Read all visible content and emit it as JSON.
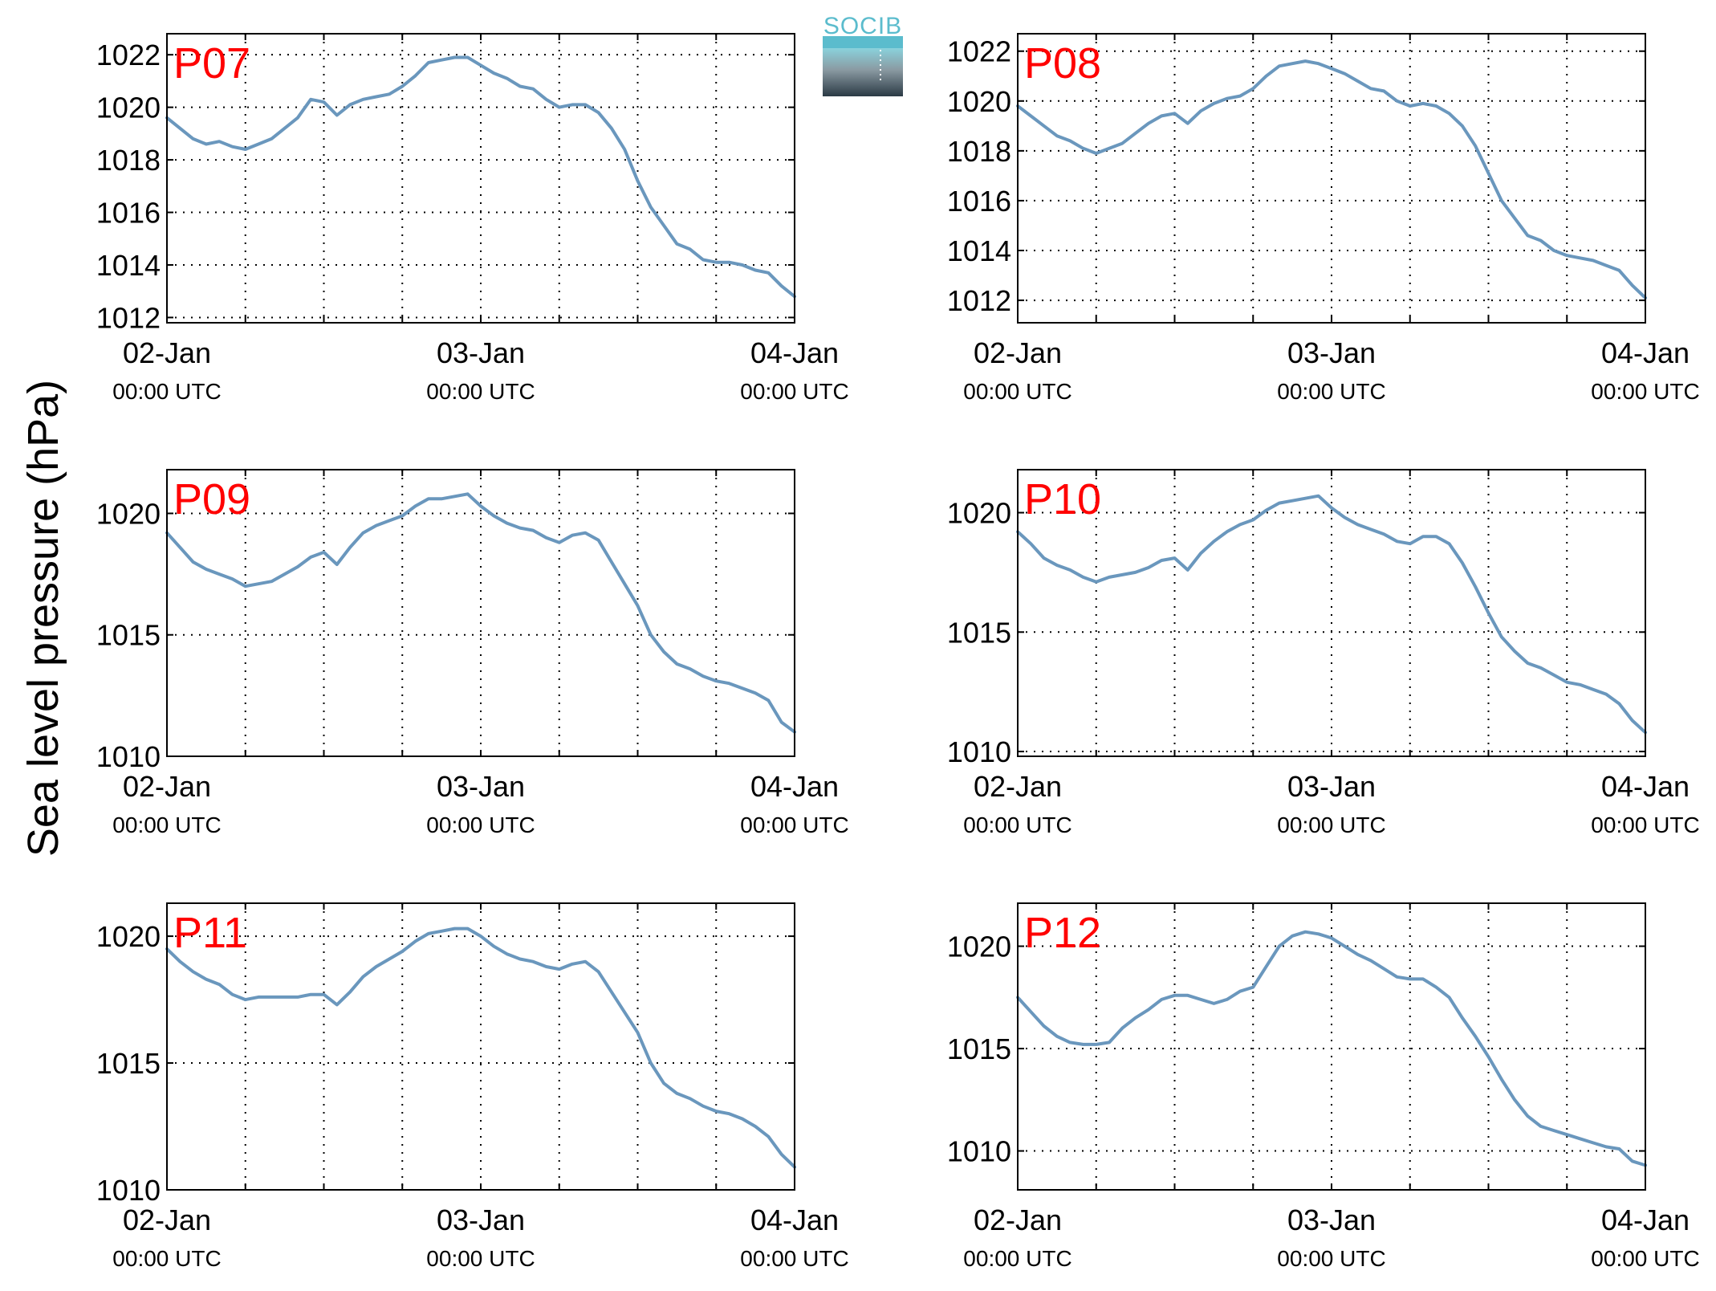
{
  "figure": {
    "ylabel": "Sea level pressure (hPa)",
    "logo_text": "SOCIB",
    "line_color": "#6a97bd",
    "station_label_color": "#ff0000",
    "logo_top_color": "#5bbccd",
    "logo_bottom_color": "#2b3a45"
  },
  "chart_data": [
    {
      "type": "line",
      "title": "P07",
      "x_ticks": [
        {
          "date": "02-Jan",
          "time": "00:00 UTC"
        },
        {
          "date": "03-Jan",
          "time": "00:00 UTC"
        },
        {
          "date": "04-Jan",
          "time": "00:00 UTC"
        }
      ],
      "xlim_hours": [
        0,
        48
      ],
      "ylim": [
        1011.8,
        1022.8
      ],
      "y_ticks": [
        1012,
        1014,
        1016,
        1018,
        1020,
        1022
      ],
      "grid": true,
      "series": [
        {
          "x_hours": [
            0,
            1,
            2,
            3,
            4,
            5,
            6,
            7,
            8,
            9,
            10,
            11,
            12,
            13,
            14,
            15,
            16,
            17,
            18,
            19,
            20,
            21,
            22,
            23,
            24,
            25,
            26,
            27,
            28,
            29,
            30,
            31,
            32,
            33,
            34,
            35,
            36,
            37,
            38,
            39,
            40,
            41,
            42,
            43,
            44,
            45,
            46,
            47,
            48
          ],
          "values": [
            1019.6,
            1019.2,
            1018.8,
            1018.6,
            1018.7,
            1018.5,
            1018.4,
            1018.6,
            1018.8,
            1019.2,
            1019.6,
            1020.3,
            1020.2,
            1019.7,
            1020.1,
            1020.3,
            1020.4,
            1020.5,
            1020.8,
            1021.2,
            1021.7,
            1021.8,
            1021.9,
            1021.9,
            1021.6,
            1021.3,
            1021.1,
            1020.8,
            1020.7,
            1020.3,
            1020.0,
            1020.1,
            1020.1,
            1019.8,
            1019.2,
            1018.4,
            1017.2,
            1016.2,
            1015.5,
            1014.8,
            1014.6,
            1014.2,
            1014.1,
            1014.1,
            1014.0,
            1013.8,
            1013.7,
            1013.2,
            1012.8
          ]
        }
      ]
    },
    {
      "type": "line",
      "title": "P08",
      "x_ticks": [
        {
          "date": "02-Jan",
          "time": "00:00 UTC"
        },
        {
          "date": "03-Jan",
          "time": "00:00 UTC"
        },
        {
          "date": "04-Jan",
          "time": "00:00 UTC"
        }
      ],
      "xlim_hours": [
        0,
        48
      ],
      "ylim": [
        1011.1,
        1022.7
      ],
      "y_ticks": [
        1012,
        1014,
        1016,
        1018,
        1020,
        1022
      ],
      "grid": true,
      "series": [
        {
          "x_hours": [
            0,
            1,
            2,
            3,
            4,
            5,
            6,
            7,
            8,
            9,
            10,
            11,
            12,
            13,
            14,
            15,
            16,
            17,
            18,
            19,
            20,
            21,
            22,
            23,
            24,
            25,
            26,
            27,
            28,
            29,
            30,
            31,
            32,
            33,
            34,
            35,
            36,
            37,
            38,
            39,
            40,
            41,
            42,
            43,
            44,
            45,
            46,
            47,
            48
          ],
          "values": [
            1019.8,
            1019.4,
            1019.0,
            1018.6,
            1018.4,
            1018.1,
            1017.9,
            1018.1,
            1018.3,
            1018.7,
            1019.1,
            1019.4,
            1019.5,
            1019.1,
            1019.6,
            1019.9,
            1020.1,
            1020.2,
            1020.5,
            1021.0,
            1021.4,
            1021.5,
            1021.6,
            1021.5,
            1021.3,
            1021.1,
            1020.8,
            1020.5,
            1020.4,
            1020.0,
            1019.8,
            1019.9,
            1019.8,
            1019.5,
            1019.0,
            1018.2,
            1017.1,
            1016.0,
            1015.3,
            1014.6,
            1014.4,
            1014.0,
            1013.8,
            1013.7,
            1013.6,
            1013.4,
            1013.2,
            1012.6,
            1012.1
          ]
        }
      ]
    },
    {
      "type": "line",
      "title": "P09",
      "x_ticks": [
        {
          "date": "02-Jan",
          "time": "00:00 UTC"
        },
        {
          "date": "03-Jan",
          "time": "00:00 UTC"
        },
        {
          "date": "04-Jan",
          "time": "00:00 UTC"
        }
      ],
      "xlim_hours": [
        0,
        48
      ],
      "ylim": [
        1010,
        1021.8
      ],
      "y_ticks": [
        1010,
        1015,
        1020
      ],
      "grid": true,
      "series": [
        {
          "x_hours": [
            0,
            1,
            2,
            3,
            4,
            5,
            6,
            7,
            8,
            9,
            10,
            11,
            12,
            13,
            14,
            15,
            16,
            17,
            18,
            19,
            20,
            21,
            22,
            23,
            24,
            25,
            26,
            27,
            28,
            29,
            30,
            31,
            32,
            33,
            34,
            35,
            36,
            37,
            38,
            39,
            40,
            41,
            42,
            43,
            44,
            45,
            46,
            47,
            48
          ],
          "values": [
            1019.2,
            1018.6,
            1018.0,
            1017.7,
            1017.5,
            1017.3,
            1017.0,
            1017.1,
            1017.2,
            1017.5,
            1017.8,
            1018.2,
            1018.4,
            1017.9,
            1018.6,
            1019.2,
            1019.5,
            1019.7,
            1019.9,
            1020.3,
            1020.6,
            1020.6,
            1020.7,
            1020.8,
            1020.3,
            1019.9,
            1019.6,
            1019.4,
            1019.3,
            1019.0,
            1018.8,
            1019.1,
            1019.2,
            1018.9,
            1018.0,
            1017.1,
            1016.2,
            1015.0,
            1014.3,
            1013.8,
            1013.6,
            1013.3,
            1013.1,
            1013.0,
            1012.8,
            1012.6,
            1012.3,
            1011.4,
            1011.0
          ]
        }
      ]
    },
    {
      "type": "line",
      "title": "P10",
      "x_ticks": [
        {
          "date": "02-Jan",
          "time": "00:00 UTC"
        },
        {
          "date": "03-Jan",
          "time": "00:00 UTC"
        },
        {
          "date": "04-Jan",
          "time": "00:00 UTC"
        }
      ],
      "xlim_hours": [
        0,
        48
      ],
      "ylim": [
        1009.8,
        1021.8
      ],
      "y_ticks": [
        1010,
        1015,
        1020
      ],
      "grid": true,
      "series": [
        {
          "x_hours": [
            0,
            1,
            2,
            3,
            4,
            5,
            6,
            7,
            8,
            9,
            10,
            11,
            12,
            13,
            14,
            15,
            16,
            17,
            18,
            19,
            20,
            21,
            22,
            23,
            24,
            25,
            26,
            27,
            28,
            29,
            30,
            31,
            32,
            33,
            34,
            35,
            36,
            37,
            38,
            39,
            40,
            41,
            42,
            43,
            44,
            45,
            46,
            47,
            48
          ],
          "values": [
            1019.2,
            1018.7,
            1018.1,
            1017.8,
            1017.6,
            1017.3,
            1017.1,
            1017.3,
            1017.4,
            1017.5,
            1017.7,
            1018.0,
            1018.1,
            1017.6,
            1018.3,
            1018.8,
            1019.2,
            1019.5,
            1019.7,
            1020.1,
            1020.4,
            1020.5,
            1020.6,
            1020.7,
            1020.2,
            1019.8,
            1019.5,
            1019.3,
            1019.1,
            1018.8,
            1018.7,
            1019.0,
            1019.0,
            1018.7,
            1017.9,
            1016.9,
            1015.8,
            1014.8,
            1014.2,
            1013.7,
            1013.5,
            1013.2,
            1012.9,
            1012.8,
            1012.6,
            1012.4,
            1012.0,
            1011.3,
            1010.8
          ]
        }
      ]
    },
    {
      "type": "line",
      "title": "P11",
      "x_ticks": [
        {
          "date": "02-Jan",
          "time": "00:00 UTC"
        },
        {
          "date": "03-Jan",
          "time": "00:00 UTC"
        },
        {
          "date": "04-Jan",
          "time": "00:00 UTC"
        }
      ],
      "xlim_hours": [
        0,
        48
      ],
      "ylim": [
        1010,
        1021.3
      ],
      "y_ticks": [
        1010,
        1015,
        1020
      ],
      "grid": true,
      "series": [
        {
          "x_hours": [
            0,
            1,
            2,
            3,
            4,
            5,
            6,
            7,
            8,
            9,
            10,
            11,
            12,
            13,
            14,
            15,
            16,
            17,
            18,
            19,
            20,
            21,
            22,
            23,
            24,
            25,
            26,
            27,
            28,
            29,
            30,
            31,
            32,
            33,
            34,
            35,
            36,
            37,
            38,
            39,
            40,
            41,
            42,
            43,
            44,
            45,
            46,
            47,
            48
          ],
          "values": [
            1019.5,
            1019.0,
            1018.6,
            1018.3,
            1018.1,
            1017.7,
            1017.5,
            1017.6,
            1017.6,
            1017.6,
            1017.6,
            1017.7,
            1017.7,
            1017.3,
            1017.8,
            1018.4,
            1018.8,
            1019.1,
            1019.4,
            1019.8,
            1020.1,
            1020.2,
            1020.3,
            1020.3,
            1020.0,
            1019.6,
            1019.3,
            1019.1,
            1019.0,
            1018.8,
            1018.7,
            1018.9,
            1019.0,
            1018.6,
            1017.8,
            1017.0,
            1016.2,
            1015.0,
            1014.2,
            1013.8,
            1013.6,
            1013.3,
            1013.1,
            1013.0,
            1012.8,
            1012.5,
            1012.1,
            1011.4,
            1010.9
          ]
        }
      ]
    },
    {
      "type": "line",
      "title": "P12",
      "x_ticks": [
        {
          "date": "02-Jan",
          "time": "00:00 UTC"
        },
        {
          "date": "03-Jan",
          "time": "00:00 UTC"
        },
        {
          "date": "04-Jan",
          "time": "00:00 UTC"
        }
      ],
      "xlim_hours": [
        0,
        48
      ],
      "ylim": [
        1008.1,
        1022.1
      ],
      "y_ticks": [
        1010,
        1015,
        1020
      ],
      "grid": true,
      "series": [
        {
          "x_hours": [
            0,
            1,
            2,
            3,
            4,
            5,
            6,
            7,
            8,
            9,
            10,
            11,
            12,
            13,
            14,
            15,
            16,
            17,
            18,
            19,
            20,
            21,
            22,
            23,
            24,
            25,
            26,
            27,
            28,
            29,
            30,
            31,
            32,
            33,
            34,
            35,
            36,
            37,
            38,
            39,
            40,
            41,
            42,
            43,
            44,
            45,
            46,
            47,
            48
          ],
          "values": [
            1017.5,
            1016.8,
            1016.1,
            1015.6,
            1015.3,
            1015.2,
            1015.2,
            1015.3,
            1016.0,
            1016.5,
            1016.9,
            1017.4,
            1017.6,
            1017.6,
            1017.4,
            1017.2,
            1017.4,
            1017.8,
            1018.0,
            1019.0,
            1020.0,
            1020.5,
            1020.7,
            1020.6,
            1020.4,
            1020.0,
            1019.6,
            1019.3,
            1018.9,
            1018.5,
            1018.4,
            1018.4,
            1018.0,
            1017.5,
            1016.5,
            1015.6,
            1014.6,
            1013.5,
            1012.5,
            1011.7,
            1011.2,
            1011.0,
            1010.8,
            1010.6,
            1010.4,
            1010.2,
            1010.1,
            1009.5,
            1009.3
          ]
        }
      ]
    }
  ]
}
